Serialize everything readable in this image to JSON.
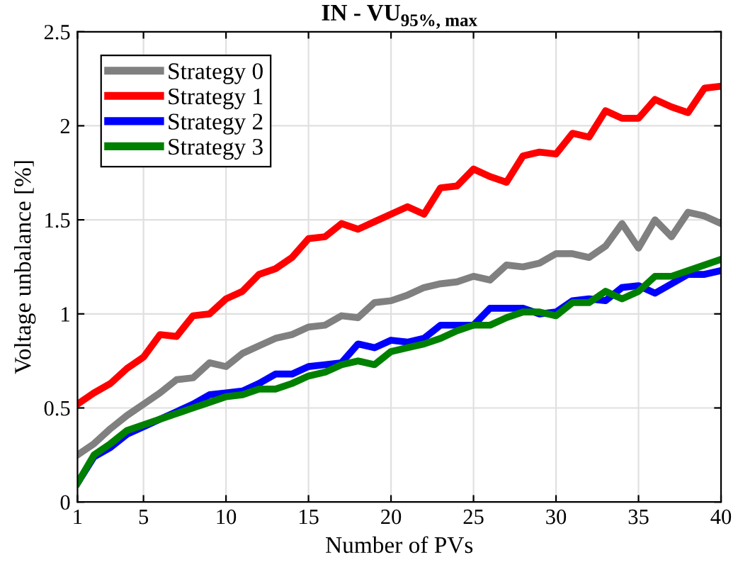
{
  "chart_data": {
    "type": "line",
    "title": "IN - VU$_{95%, max}$",
    "xlabel": "Number of PVs",
    "ylabel": "Voltage unbalance [%]",
    "x": [
      1,
      2,
      3,
      4,
      5,
      6,
      7,
      8,
      9,
      10,
      11,
      12,
      13,
      14,
      15,
      16,
      17,
      18,
      19,
      20,
      21,
      22,
      23,
      24,
      25,
      26,
      27,
      28,
      29,
      30,
      31,
      32,
      33,
      34,
      35,
      36,
      37,
      38,
      39,
      40
    ],
    "series": [
      {
        "name": "Strategy 0",
        "color": "#808080",
        "values": [
          0.25,
          0.31,
          0.39,
          0.46,
          0.52,
          0.58,
          0.65,
          0.66,
          0.74,
          0.72,
          0.79,
          0.83,
          0.87,
          0.89,
          0.93,
          0.94,
          0.99,
          0.98,
          1.06,
          1.07,
          1.1,
          1.14,
          1.16,
          1.17,
          1.2,
          1.18,
          1.26,
          1.25,
          1.27,
          1.32,
          1.32,
          1.3,
          1.36,
          1.48,
          1.35,
          1.5,
          1.41,
          1.54,
          1.52,
          1.48
        ]
      },
      {
        "name": "Strategy 1",
        "color": "#ff0000",
        "values": [
          0.52,
          0.58,
          0.63,
          0.71,
          0.77,
          0.89,
          0.88,
          0.99,
          1.0,
          1.08,
          1.12,
          1.21,
          1.24,
          1.3,
          1.4,
          1.41,
          1.48,
          1.45,
          1.49,
          1.53,
          1.57,
          1.53,
          1.67,
          1.68,
          1.77,
          1.73,
          1.7,
          1.84,
          1.86,
          1.85,
          1.96,
          1.94,
          2.08,
          2.04,
          2.04,
          2.14,
          2.1,
          2.07,
          2.2,
          2.21
        ]
      },
      {
        "name": "Strategy 2",
        "color": "#0000ff",
        "values": [
          0.1,
          0.24,
          0.29,
          0.36,
          0.4,
          0.44,
          0.48,
          0.52,
          0.57,
          0.58,
          0.59,
          0.63,
          0.68,
          0.68,
          0.72,
          0.73,
          0.74,
          0.84,
          0.82,
          0.86,
          0.85,
          0.87,
          0.94,
          0.94,
          0.94,
          1.03,
          1.03,
          1.03,
          1.0,
          1.01,
          1.07,
          1.08,
          1.07,
          1.14,
          1.15,
          1.11,
          1.16,
          1.21,
          1.21,
          1.23
        ]
      },
      {
        "name": "Strategy 3",
        "color": "#008000",
        "values": [
          0.1,
          0.25,
          0.31,
          0.38,
          0.41,
          0.44,
          0.47,
          0.5,
          0.53,
          0.56,
          0.57,
          0.6,
          0.6,
          0.63,
          0.67,
          0.69,
          0.73,
          0.75,
          0.73,
          0.8,
          0.82,
          0.84,
          0.87,
          0.91,
          0.94,
          0.94,
          0.98,
          1.01,
          1.01,
          0.99,
          1.06,
          1.06,
          1.12,
          1.08,
          1.12,
          1.2,
          1.2,
          1.23,
          1.26,
          1.29
        ]
      }
    ],
    "xlim": [
      1,
      40
    ],
    "xticks": [
      1,
      5,
      10,
      15,
      20,
      25,
      30,
      35,
      40
    ],
    "ylim": [
      0,
      2.5
    ],
    "yticks": [
      0,
      0.5,
      1,
      1.5,
      2,
      2.5
    ],
    "grid": true,
    "legend": "top left",
    "marker": "none",
    "line_style": "solid"
  }
}
